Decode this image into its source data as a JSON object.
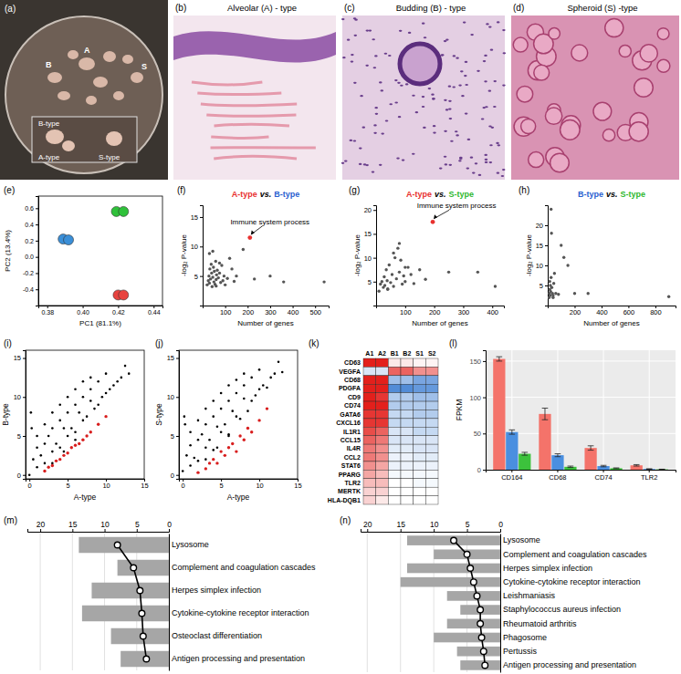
{
  "images": [
    {
      "panel_label": "(a)",
      "labels": [
        "A",
        "B",
        "S",
        "B-type",
        "A-type",
        "S-type"
      ]
    },
    {
      "panel_label": "(b)",
      "title": "Alveolar (A) - type"
    },
    {
      "panel_label": "(c)",
      "title": "Budding (B) - type"
    },
    {
      "panel_label": "(d)",
      "title": "Spheroid (S) -type"
    }
  ],
  "chart_data": [
    {
      "panel_label": "(e)",
      "type": "scatter",
      "x_label": "PC1 (81.1%)",
      "y_label": "PC2 (13.4%)",
      "xlim": [
        0.375,
        0.445
      ],
      "xticks": [
        {
          "value": 0.38,
          "label": "0.38"
        },
        {
          "value": 0.4,
          "label": "0.40"
        },
        {
          "value": 0.42,
          "label": "0.42"
        },
        {
          "value": 0.44,
          "label": "0.44"
        }
      ],
      "ylim": [
        -0.6,
        0.75
      ],
      "yticks": [
        {
          "value": -0.4,
          "label": "-0.4"
        },
        {
          "value": -0.2,
          "label": "-0.2"
        },
        {
          "value": 0,
          "label": "0.0"
        },
        {
          "value": 0.2,
          "label": "0.2"
        },
        {
          "value": 0.4,
          "label": "0.4"
        },
        {
          "value": 0.6,
          "label": "0.6"
        }
      ],
      "series": [
        {
          "color": "#3a8fd8",
          "x": [
            0.389,
            0.392
          ],
          "values": [
            0.22,
            0.21
          ]
        },
        {
          "color": "#2fc13a",
          "x": [
            0.419,
            0.423
          ],
          "values": [
            0.56,
            0.56
          ]
        },
        {
          "color": "#e8433f",
          "x": [
            0.42,
            0.423
          ],
          "values": [
            -0.47,
            -0.47
          ]
        }
      ]
    },
    {
      "panel_label": "(f)",
      "type": "scatter",
      "title_parts": [
        {
          "text": "A-type",
          "color": "#e8312f"
        },
        {
          "text": "vs.",
          "color": "#000000"
        },
        {
          "text": "B-type",
          "color": "#2a5fd0"
        }
      ],
      "x_label": "Number of genes",
      "y_label": "-log₂ P-value",
      "xlim": [
        0,
        560
      ],
      "xticks": [
        100,
        200,
        300,
        400,
        500
      ],
      "ylim": [
        0,
        17
      ],
      "yticks": [
        5,
        10,
        15
      ],
      "series": [
        {
          "color": "#555555",
          "x": [
            20,
            25,
            28,
            30,
            32,
            35,
            38,
            40,
            42,
            45,
            48,
            50,
            52,
            55,
            58,
            60,
            62,
            65,
            70,
            75,
            80,
            85,
            90,
            95,
            100,
            110,
            120,
            130,
            150,
            180,
            230,
            300,
            360,
            540,
            30,
            45,
            60,
            75,
            140
          ],
          "values": [
            3.5,
            4.2,
            5.0,
            3.8,
            6.2,
            4.5,
            7.0,
            5.5,
            3.2,
            4.8,
            6.5,
            4.0,
            5.8,
            3.6,
            7.5,
            4.4,
            5.2,
            6.0,
            4.7,
            5.5,
            3.9,
            6.8,
            4.2,
            5.0,
            3.5,
            4.6,
            8.0,
            6.2,
            5.0,
            9.5,
            4.5,
            5.0,
            4.0,
            4.0,
            8.8,
            9.2,
            3.3,
            7.2,
            4.1
          ]
        },
        {
          "color": "#e8312f",
          "annotation": "Immune system process",
          "x": [
            210
          ],
          "values": [
            11.5
          ]
        }
      ]
    },
    {
      "panel_label": "(g)",
      "type": "scatter",
      "title_parts": [
        {
          "text": "A-type",
          "color": "#e8312f"
        },
        {
          "text": "vs.",
          "color": "#000000"
        },
        {
          "text": "S-type",
          "color": "#2fb82f"
        }
      ],
      "x_label": "Number of genes",
      "y_label": "-log₂ P-value",
      "xlim": [
        0,
        440
      ],
      "xticks": [
        100,
        200,
        300,
        400
      ],
      "ylim": [
        0,
        21
      ],
      "yticks": [
        5,
        10,
        15,
        20
      ],
      "series": [
        {
          "color": "#555555",
          "x": [
            10,
            15,
            20,
            25,
            28,
            30,
            35,
            38,
            40,
            45,
            50,
            55,
            60,
            65,
            70,
            75,
            80,
            85,
            90,
            95,
            100,
            110,
            120,
            130,
            150,
            170,
            250,
            350,
            410,
            40,
            60,
            80,
            100
          ],
          "values": [
            3,
            4.5,
            5,
            3.8,
            6,
            4.2,
            7.5,
            5.2,
            3.4,
            8.5,
            4.8,
            6.5,
            4,
            10,
            5.6,
            12,
            7,
            9.5,
            4.5,
            6.2,
            5,
            8,
            6.5,
            4.6,
            7.5,
            5.5,
            7,
            7,
            4,
            3.5,
            11,
            13,
            8
          ]
        },
        {
          "color": "#e8312f",
          "annotation": "Immune system process",
          "x": [
            195
          ],
          "values": [
            17.5
          ]
        }
      ]
    },
    {
      "panel_label": "(h)",
      "type": "scatter",
      "title_parts": [
        {
          "text": "B-type",
          "color": "#2a5fd0"
        },
        {
          "text": "vs.",
          "color": "#000000"
        },
        {
          "text": "S-type",
          "color": "#2fb82f"
        }
      ],
      "x_label": "Number of genes",
      "y_label": "-log₂ P-value",
      "xlim": [
        0,
        950
      ],
      "xticks": [
        200,
        400,
        600,
        800
      ],
      "ylim": [
        0,
        25
      ],
      "yticks": [
        5,
        10,
        15,
        20
      ],
      "series": [
        {
          "color": "#555555",
          "x": [
            10,
            12,
            15,
            18,
            20,
            22,
            25,
            28,
            30,
            35,
            40,
            45,
            50,
            60,
            80,
            100,
            120,
            150,
            200,
            300,
            900,
            15,
            25,
            40
          ],
          "values": [
            2,
            3,
            4,
            2.5,
            5,
            3.5,
            24,
            18,
            4.5,
            3,
            2.5,
            5.5,
            8,
            3,
            2.8,
            15,
            12,
            10,
            3,
            3,
            2.2,
            6,
            7,
            2
          ]
        }
      ]
    },
    {
      "panel_label": "(i)",
      "type": "scatter",
      "x_label": "A-type",
      "y_label": "B-type",
      "xlim": [
        -0.5,
        15
      ],
      "xticks": [
        0,
        5,
        10,
        15
      ],
      "ylim": [
        -0.5,
        16
      ],
      "yticks": [
        0,
        5,
        10,
        15
      ],
      "series": [
        {
          "color": "#000000",
          "x": [
            0,
            0.5,
            1,
            1,
            1.5,
            2,
            2,
            2.5,
            3,
            3,
            3.5,
            4,
            4,
            4.5,
            5,
            5,
            5.5,
            6,
            6,
            6.5,
            7,
            7,
            7.5,
            8,
            8,
            8.5,
            9,
            9,
            9.5,
            10,
            10,
            10.5,
            11,
            11.5,
            12,
            12.5,
            13,
            1,
            2,
            3,
            4,
            5,
            6,
            7,
            8,
            3,
            4.5,
            6,
            0.3,
            0.2
          ],
          "values": [
            0,
            2,
            1,
            3.5,
            2.5,
            4,
            1.5,
            5,
            3,
            6,
            4,
            7,
            3.5,
            6,
            5,
            8,
            6,
            9,
            5.5,
            8,
            7,
            10,
            7.5,
            9.5,
            11,
            8.5,
            9,
            12,
            10,
            10.5,
            13,
            11,
            11.5,
            12,
            12.5,
            14,
            13,
            5,
            6.5,
            8,
            9,
            10,
            11,
            12,
            12.5,
            1.5,
            3,
            4.5,
            6,
            8
          ]
        },
        {
          "color": "#d81e1e",
          "x": [
            2,
            2.5,
            3,
            3.5,
            4,
            4.5,
            5,
            5.5,
            6,
            6.5,
            7,
            7.5,
            8,
            9,
            10
          ],
          "values": [
            0.5,
            1,
            1.2,
            1.8,
            2,
            2.5,
            2.8,
            3.5,
            3.8,
            4,
            4.5,
            5,
            5.5,
            6.5,
            7.5
          ]
        }
      ]
    },
    {
      "panel_label": "(j)",
      "type": "scatter",
      "x_label": "A-type",
      "y_label": "S-type",
      "xlim": [
        -0.5,
        15
      ],
      "xticks": [
        0,
        5,
        10,
        15
      ],
      "ylim": [
        -0.5,
        16
      ],
      "yticks": [
        0,
        5,
        10,
        15
      ],
      "series": [
        {
          "color": "#000000",
          "x": [
            0,
            0.5,
            1,
            1,
            1.5,
            2,
            2,
            2.5,
            3,
            3,
            3.5,
            4,
            4,
            4.5,
            5,
            5,
            5.5,
            6,
            6,
            6.5,
            7,
            7,
            7.5,
            8,
            8,
            8.5,
            9,
            9,
            9.5,
            10,
            10,
            10.5,
            11,
            11.5,
            12,
            12.5,
            13,
            1,
            2,
            3,
            4,
            5,
            6,
            7,
            8,
            3,
            4.5,
            6,
            0.3,
            0.2
          ],
          "values": [
            0.5,
            2.5,
            1.2,
            3.8,
            2.2,
            4.5,
            1.8,
            5.2,
            3.5,
            6.5,
            4.5,
            7.5,
            3.2,
            6.2,
            5.5,
            8.5,
            6.5,
            9.5,
            5.2,
            8.2,
            7.5,
            10.5,
            7.2,
            9.8,
            11.5,
            8.2,
            9.5,
            12.5,
            10.2,
            11,
            13.5,
            11.5,
            11.2,
            12.5,
            13,
            14.5,
            13.2,
            5.5,
            7,
            8.5,
            9.5,
            10.5,
            11.5,
            12.2,
            13,
            2,
            3.5,
            5,
            6.5,
            7.5
          ]
        },
        {
          "color": "#d81e1e",
          "x": [
            2,
            3,
            3.5,
            4,
            4.5,
            5,
            5.5,
            6,
            6.5,
            7,
            7.5,
            8,
            8.5,
            9,
            10,
            11
          ],
          "values": [
            0.3,
            0.8,
            1.5,
            2,
            1.5,
            3,
            2.5,
            3.5,
            4,
            3,
            5,
            4.5,
            6,
            5.5,
            7,
            8.5
          ]
        }
      ]
    },
    {
      "panel_label": "(k)",
      "type": "heatmap",
      "x": [
        "A1",
        "A2",
        "B1",
        "B2",
        "S1",
        "S2"
      ],
      "y": [
        "CD63",
        "VEGFA",
        "CD68",
        "PDGFA",
        "CD9",
        "CD74",
        "GATA6",
        "CXCL16",
        "IL1R1",
        "CCL15",
        "IL4R",
        "CCL2",
        "STAT6",
        "PPARG",
        "TLR2",
        "MERTK",
        "HLA-DQB1"
      ],
      "zlim": [
        -1,
        1
      ],
      "cells": [
        [
          1,
          1,
          0.1,
          0.1,
          0.05,
          0.05
        ],
        [
          -0.2,
          -0.2,
          0.7,
          0.7,
          0.5,
          0.5
        ],
        [
          1,
          1,
          -0.5,
          -0.5,
          -0.7,
          -0.7
        ],
        [
          1,
          1,
          -0.9,
          -0.9,
          -0.8,
          -0.8
        ],
        [
          1,
          0.9,
          -0.4,
          -0.4,
          -0.5,
          -0.5
        ],
        [
          1,
          1,
          -0.4,
          -0.4,
          -0.4,
          -0.4
        ],
        [
          0.9,
          0.9,
          -0.3,
          -0.3,
          -0.4,
          -0.4
        ],
        [
          0.9,
          0.9,
          -0.3,
          -0.3,
          -0.3,
          -0.3
        ],
        [
          0.8,
          0.7,
          -0.2,
          -0.2,
          -0.3,
          -0.3
        ],
        [
          0.7,
          0.6,
          -0.2,
          -0.2,
          -0.2,
          -0.2
        ],
        [
          0.6,
          0.5,
          -0.15,
          -0.15,
          -0.2,
          -0.2
        ],
        [
          0.6,
          0.5,
          -0.1,
          -0.1,
          -0.15,
          -0.15
        ],
        [
          0.5,
          0.4,
          -0.1,
          -0.1,
          -0.1,
          -0.1
        ],
        [
          0.4,
          0.3,
          -0.05,
          -0.05,
          -0.05,
          -0.05
        ],
        [
          0.3,
          0.3,
          0,
          0,
          -0.05,
          -0.05
        ],
        [
          0.2,
          0.2,
          0,
          0,
          0,
          0
        ],
        [
          0.2,
          0.1,
          0,
          0,
          0,
          0
        ]
      ]
    },
    {
      "panel_label": "(l)",
      "type": "bar",
      "y_label": "FPKM",
      "categories": [
        "CD164",
        "CD68",
        "CD74",
        "TLR2"
      ],
      "ylim": [
        0,
        165
      ],
      "yticks": [
        0,
        50,
        100,
        150
      ],
      "grid": true,
      "series": [
        {
          "color": "#f4736a",
          "values": [
            153,
            77,
            30,
            6
          ],
          "errors": [
            3,
            8,
            3,
            1
          ]
        },
        {
          "color": "#4a8fe0",
          "values": [
            52,
            20,
            5,
            1
          ],
          "errors": [
            3,
            2,
            1,
            0.3
          ]
        },
        {
          "color": "#3cc23c",
          "values": [
            22,
            4,
            2,
            0.5
          ],
          "errors": [
            2,
            1,
            0.5,
            0.2
          ]
        }
      ]
    },
    {
      "panel_label": "(m)",
      "type": "bar",
      "orientation": "horizontal",
      "grid": true,
      "xlim": [
        22,
        0
      ],
      "xticks": [
        20,
        15,
        10,
        5,
        0
      ],
      "categories": [
        "Lysosome",
        "Complement and coagulation cascades",
        "Herpes simplex infection",
        "Cytokine-cytokine receptor interaction",
        "Osteoclast differentiation",
        "Antigen processing and presentation"
      ],
      "series": [
        {
          "type": "bar",
          "color": "#a6a6a6",
          "values": [
            14,
            8,
            12,
            13.5,
            9,
            7.5
          ]
        },
        {
          "type": "line",
          "marker": "circle",
          "color": "#000000",
          "values": [
            8,
            5.5,
            4.5,
            4.2,
            4,
            3.5
          ]
        }
      ]
    },
    {
      "panel_label": "(n)",
      "type": "bar",
      "orientation": "horizontal",
      "grid": true,
      "xlim": [
        21,
        0
      ],
      "xticks": [
        20,
        15,
        10,
        5,
        0
      ],
      "categories": [
        "Lysosome",
        "Complement and coagulation cascades",
        "Herpes simplex infection",
        "Cytokine-cytokine receptor interaction",
        "Leishmaniasis",
        "Staphylococcus aureus infection",
        "Rheumatoid arthritis",
        "Phagosome",
        "Pertussis",
        "Antigen processing and presentation"
      ],
      "series": [
        {
          "type": "bar",
          "color": "#a6a6a6",
          "values": [
            14,
            10,
            14,
            15,
            8,
            6,
            8,
            10,
            6.5,
            6
          ]
        },
        {
          "type": "line",
          "marker": "circle",
          "color": "#000000",
          "values": [
            7,
            5,
            4.5,
            4,
            3.5,
            3,
            3,
            2.8,
            2.5,
            2.3
          ]
        }
      ]
    }
  ]
}
